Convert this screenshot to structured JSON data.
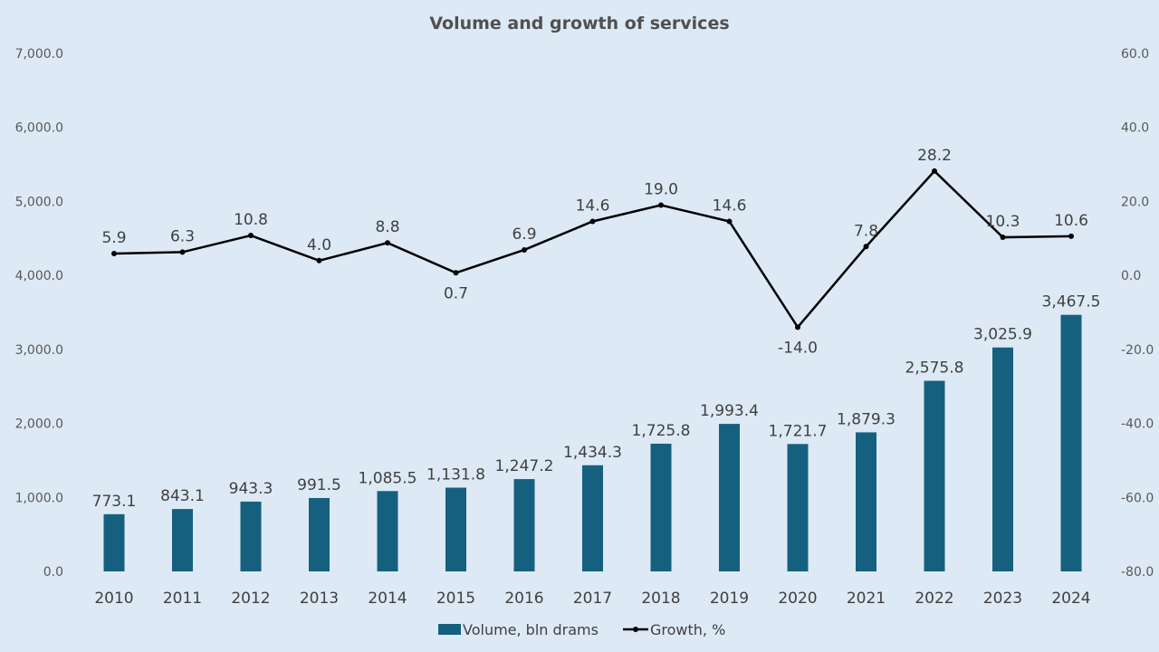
{
  "chart_data": {
    "type": "bar+line",
    "title": "Volume and growth of services",
    "categories": [
      "2010",
      "2011",
      "2012",
      "2013",
      "2014",
      "2015",
      "2016",
      "2017",
      "2018",
      "2019",
      "2020",
      "2021",
      "2022",
      "2023",
      "2024"
    ],
    "series": [
      {
        "name": "Volume, bln drams",
        "type": "bar",
        "axis": "left",
        "color": "#16607f",
        "values": [
          773.1,
          843.1,
          943.3,
          991.5,
          1085.5,
          1131.8,
          1247.2,
          1434.3,
          1725.8,
          1993.4,
          1721.7,
          1879.3,
          2575.8,
          3025.9,
          3467.5
        ],
        "labels": [
          "773.1",
          "843.1",
          "943.3",
          "991.5",
          "1,085.5",
          "1,131.8",
          "1,247.2",
          "1,434.3",
          "1,725.8",
          "1,993.4",
          "1,721.7",
          "1,879.3",
          "2,575.8",
          "3,025.9",
          "3,467.5"
        ]
      },
      {
        "name": "Growth, %",
        "type": "line",
        "axis": "right",
        "color": "#000000",
        "values": [
          5.9,
          6.3,
          10.8,
          4.0,
          8.8,
          0.7,
          6.9,
          14.6,
          19.0,
          14.6,
          -14.0,
          7.8,
          28.2,
          10.3,
          10.6
        ],
        "labels": [
          "5.9",
          "6.3",
          "10.8",
          "4.0",
          "8.8",
          "0.7",
          "6.9",
          "14.6",
          "19.0",
          "14.6",
          "-14.0",
          "7.8",
          "28.2",
          "10.3",
          "10.6"
        ]
      }
    ],
    "y_left": {
      "range": [
        0,
        7000
      ],
      "ticks": [
        "0.0",
        "1,000.0",
        "2,000.0",
        "3,000.0",
        "4,000.0",
        "5,000.0",
        "6,000.0",
        "7,000.0"
      ]
    },
    "y_right": {
      "range": [
        -80,
        60
      ],
      "ticks": [
        "-80.0",
        "-60.0",
        "-40.0",
        "-20.0",
        "0.0",
        "20.0",
        "40.0",
        "60.0"
      ]
    },
    "highlight_color": "#ff0000",
    "highlight_category": "2024",
    "grid": false,
    "legend": "bottom"
  }
}
